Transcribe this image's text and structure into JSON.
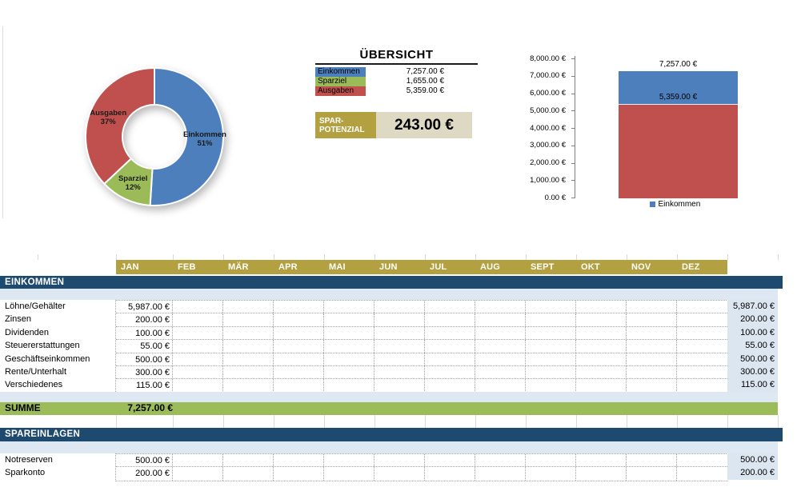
{
  "colors": {
    "month_band": "#B3A141",
    "section_band": "#1F4A70",
    "summe_band": "#9CBB59",
    "light_blue": "#DEE8F2",
    "total_col": "#DCE6F1",
    "spar_value_bg": "#DDD9C3",
    "donut_blue": "#4C7FBC",
    "donut_green": "#9BBB59",
    "donut_red": "#C0504D",
    "axis_gray": "#808080"
  },
  "overview": {
    "title": "ÜBERSICHT",
    "rows": [
      {
        "label": "Einkommen",
        "value": "7,257.00 €",
        "color": "#4C7FBC"
      },
      {
        "label": "Sparziel",
        "value": "1,655.00 €",
        "color": "#9BBB59"
      },
      {
        "label": "Ausgaben",
        "value": "5,359.00 €",
        "color": "#C0504D"
      }
    ],
    "spar": {
      "line1": "SPAR-",
      "line2": "POTENZIAL",
      "value": "243.00 €"
    }
  },
  "chart_data": [
    {
      "type": "pie",
      "donut": true,
      "labels": [
        "Einkommen",
        "Sparziel",
        "Ausgaben"
      ],
      "values_pct": [
        51,
        12,
        37
      ],
      "values_eur": [
        7257,
        1655,
        5359
      ],
      "slice_labels": [
        [
          "Einkommen",
          "51%"
        ],
        [
          "Sparziel",
          "12%"
        ],
        [
          "Ausgaben",
          "37%"
        ]
      ],
      "colors": [
        "#4C7FBC",
        "#9BBB59",
        "#C0504D"
      ],
      "start_at_top": true,
      "clockwise": true,
      "legend_position": "none"
    },
    {
      "type": "bar",
      "overlapped": true,
      "categories": [
        "Einkommen"
      ],
      "series": [
        {
          "name": "Einkommen",
          "values": [
            7257
          ],
          "data_label": "7,257.00 €",
          "color": "#4C7FBC"
        },
        {
          "name": "Ausgaben",
          "values": [
            5359
          ],
          "data_label": "5,359.00 €",
          "color": "#C0504D"
        }
      ],
      "ylim": [
        0,
        8000
      ],
      "ytick_labels": [
        "8,000.00 €",
        "7,000.00 €",
        "6,000.00 €",
        "5,000.00 €",
        "4,000.00 €",
        "3,000.00 €",
        "2,000.00 €",
        "1,000.00 €",
        "0.00 €"
      ],
      "grid": false,
      "legend": [
        {
          "label": "Einkommen",
          "color": "#4C7FBC"
        }
      ],
      "legend_position": "bottom"
    }
  ],
  "table": {
    "months": [
      "JAN",
      "FEB",
      "MÄR",
      "APR",
      "MAI",
      "JUN",
      "JUL",
      "AUG",
      "SEPT",
      "OKT",
      "NOV",
      "DEZ"
    ],
    "income": {
      "header": "EINKOMMEN",
      "rows": [
        {
          "label": "Löhne/Gehälter",
          "jan": "5,987.00 €",
          "total": "5,987.00 €"
        },
        {
          "label": "Zinsen",
          "jan": "200.00 €",
          "total": "200.00 €"
        },
        {
          "label": "Dividenden",
          "jan": "100.00 €",
          "total": "100.00 €"
        },
        {
          "label": "Steuererstattungen",
          "jan": "55.00 €",
          "total": "55.00 €"
        },
        {
          "label": "Geschäftseinkommen",
          "jan": "500.00 €",
          "total": "500.00 €"
        },
        {
          "label": "Rente/Unterhalt",
          "jan": "300.00 €",
          "total": "300.00 €"
        },
        {
          "label": "Verschiedenes",
          "jan": "115.00 €",
          "total": "115.00 €"
        }
      ]
    },
    "summe": {
      "label": "SUMME",
      "jan": "7,257.00 €"
    },
    "savings": {
      "header": "SPAREINLAGEN",
      "rows": [
        {
          "label": "Notreserven",
          "jan": "500.00 €",
          "total": "500.00 €"
        },
        {
          "label": "Sparkonto",
          "jan": "200.00 €",
          "total": "200.00 €"
        }
      ]
    }
  }
}
